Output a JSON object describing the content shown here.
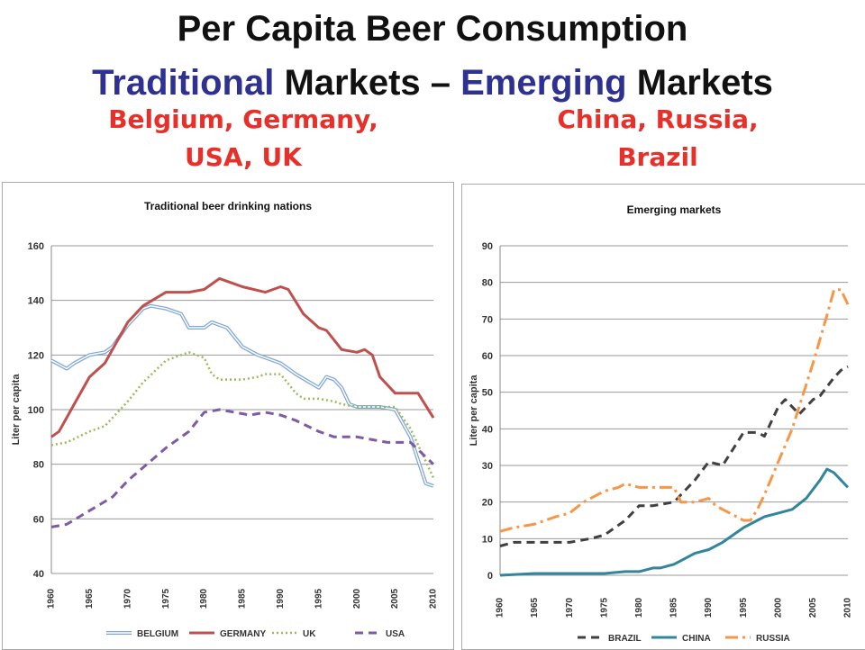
{
  "slide": {
    "title_line1": "Per Capita Beer Consumption",
    "title_line2_a": "Traditional",
    "title_line2_b": " Markets – ",
    "title_line2_c": "Emerging",
    "title_line2_d": " Markets",
    "subtitle_left_1": "Belgium, Germany,",
    "subtitle_left_2": "USA, UK",
    "subtitle_right_1": "China, Russia,",
    "subtitle_right_2": "Brazil"
  },
  "chart_data": [
    {
      "type": "line",
      "title": "Traditional beer drinking nations",
      "xlabel": "",
      "ylabel": "Liter per capita",
      "xlim": [
        1960,
        2010
      ],
      "ylim": [
        40,
        160
      ],
      "x_ticks": [
        1960,
        1965,
        1970,
        1975,
        1980,
        1985,
        1990,
        1995,
        2000,
        2005,
        2010
      ],
      "y_ticks": [
        40,
        60,
        80,
        100,
        120,
        140,
        160
      ],
      "grid": true,
      "legend": "bottom",
      "series": [
        {
          "name": "BELGIUM",
          "color": "#7ea6d8",
          "style": "double",
          "x": [
            1960,
            1962,
            1963,
            1965,
            1967,
            1968,
            1970,
            1972,
            1973,
            1975,
            1977,
            1978,
            1980,
            1981,
            1982,
            1983,
            1985,
            1987,
            1990,
            1992,
            1995,
            1996,
            1997,
            1998,
            1999,
            2000,
            2002,
            2003,
            2005,
            2007,
            2009,
            2010
          ],
          "y": [
            118,
            115,
            117,
            120,
            121,
            123,
            131,
            137,
            138,
            137,
            135,
            130,
            130,
            132,
            131,
            130,
            123,
            120,
            117,
            113,
            108,
            112,
            111,
            108,
            102,
            101,
            101,
            101,
            100,
            90,
            73,
            72
          ]
        },
        {
          "name": "GERMANY",
          "color": "#c0504d",
          "style": "solid",
          "x": [
            1960,
            1961,
            1963,
            1965,
            1967,
            1968,
            1970,
            1972,
            1975,
            1977,
            1978,
            1980,
            1982,
            1983,
            1985,
            1988,
            1990,
            1991,
            1993,
            1995,
            1996,
            1998,
            2000,
            2001,
            2002,
            2003,
            2005,
            2006,
            2008,
            2010
          ],
          "y": [
            90,
            92,
            102,
            112,
            117,
            122,
            132,
            138,
            143,
            143,
            143,
            144,
            148,
            147,
            145,
            143,
            145,
            144,
            135,
            130,
            129,
            122,
            121,
            122,
            120,
            112,
            106,
            106,
            106,
            97
          ]
        },
        {
          "name": "UK",
          "color": "#9bbb59",
          "style": "dotted",
          "x": [
            1960,
            1962,
            1965,
            1967,
            1970,
            1972,
            1975,
            1977,
            1978,
            1980,
            1981,
            1982,
            1985,
            1987,
            1988,
            1990,
            1992,
            1993,
            1995,
            1997,
            1998,
            2000,
            2002,
            2005,
            2007,
            2010
          ],
          "y": [
            87,
            88,
            92,
            94,
            103,
            110,
            118,
            120,
            121,
            119,
            113,
            111,
            111,
            112,
            113,
            113,
            106,
            104,
            104,
            103,
            102,
            101,
            101,
            101,
            93,
            75
          ]
        },
        {
          "name": "USA",
          "color": "#7d5ba6",
          "style": "dashed",
          "x": [
            1960,
            1962,
            1965,
            1968,
            1970,
            1975,
            1978,
            1980,
            1982,
            1984,
            1986,
            1988,
            1990,
            1992,
            1995,
            1997,
            2000,
            2002,
            2004,
            2005,
            2007,
            2010
          ],
          "y": [
            57,
            58,
            63,
            68,
            74,
            86,
            92,
            99,
            100,
            99,
            98,
            99,
            98,
            96,
            92,
            90,
            90,
            89,
            88,
            88,
            88,
            80
          ]
        }
      ]
    },
    {
      "type": "line",
      "title": "Emerging markets",
      "xlabel": "",
      "ylabel": "Liter per capita",
      "xlim": [
        1960,
        2010
      ],
      "ylim": [
        0,
        90
      ],
      "x_ticks": [
        1960,
        1965,
        1970,
        1975,
        1980,
        1985,
        1990,
        1995,
        2000,
        2005,
        2010
      ],
      "y_ticks": [
        0,
        10,
        20,
        30,
        40,
        50,
        60,
        70,
        80,
        90
      ],
      "grid": true,
      "legend": "bottom",
      "series": [
        {
          "name": "BRAZIL",
          "color": "#404040",
          "style": "dashed",
          "x": [
            1960,
            1962,
            1965,
            1968,
            1970,
            1973,
            1975,
            1978,
            1980,
            1982,
            1985,
            1988,
            1990,
            1992,
            1994,
            1995,
            1997,
            1998,
            2000,
            2001,
            2003,
            2005,
            2006,
            2008,
            2009,
            2010
          ],
          "y": [
            8,
            9,
            9,
            9,
            9,
            10,
            11,
            15,
            19,
            19,
            20,
            26,
            31,
            30,
            36,
            39,
            39,
            38,
            46,
            48,
            44,
            48,
            49,
            54,
            56,
            57
          ]
        },
        {
          "name": "CHINA",
          "color": "#31859c",
          "style": "solid",
          "x": [
            1960,
            1965,
            1970,
            1975,
            1978,
            1980,
            1982,
            1983,
            1985,
            1987,
            1988,
            1990,
            1992,
            1995,
            1997,
            1998,
            2000,
            2002,
            2004,
            2006,
            2007,
            2008,
            2010
          ],
          "y": [
            0,
            0.5,
            0.5,
            0.5,
            1,
            1,
            2,
            2,
            3,
            5,
            6,
            7,
            9,
            13,
            15,
            16,
            17,
            18,
            21,
            26,
            29,
            28,
            24
          ]
        },
        {
          "name": "RUSSIA",
          "color": "#f79646",
          "style": "dashdot",
          "x": [
            1960,
            1962,
            1965,
            1968,
            1970,
            1972,
            1975,
            1977,
            1978,
            1980,
            1983,
            1985,
            1986,
            1988,
            1990,
            1991,
            1992,
            1993,
            1995,
            1996,
            1997,
            1998,
            2000,
            2002,
            2005,
            2007,
            2008,
            2009,
            2010
          ],
          "y": [
            12,
            13,
            14,
            16,
            17,
            20,
            23,
            24,
            25,
            24,
            24,
            24,
            20,
            20,
            21,
            19,
            18,
            17,
            15,
            15,
            18,
            22,
            31,
            40,
            58,
            71,
            78,
            78,
            74
          ]
        }
      ]
    }
  ]
}
